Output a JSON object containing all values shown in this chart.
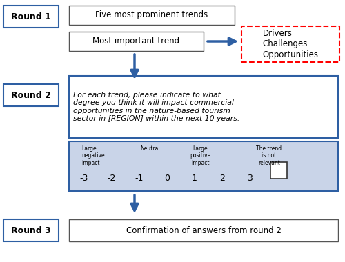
{
  "background_color": "#ffffff",
  "arrow_color": "#2e5fa3",
  "likert_bg": "#c9d4e8",
  "round1_label": "Round 1",
  "round2_label": "Round 2",
  "round3_label": "Round 3",
  "box1_text": "Five most prominent trends",
  "box2_text": "Most important trend",
  "dco_text": "Drivers\nChallenges\nOpportunities",
  "round2_question": "For each trend, please indicate to what\ndegree you think it will impact commercial\nopportunities in the nature-based tourism\nsector in [REGION] within the next 10 years.",
  "round3_text": "Confirmation of answers from round 2",
  "likert_scale": [
    "-3",
    "-2",
    "-1",
    "0",
    "1",
    "2",
    "3"
  ]
}
